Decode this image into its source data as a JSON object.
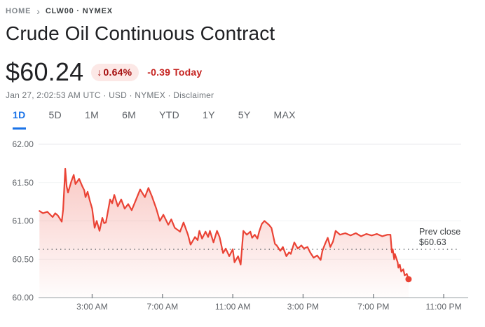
{
  "breadcrumb": {
    "home": "HOME",
    "symbol": "CLW00 · NYMEX"
  },
  "page_title": "Crude Oil Continuous Contract",
  "icons": {
    "breadcrumb_chevron": "›",
    "down_arrow": "↓"
  },
  "quote": {
    "price": "$60.24",
    "percent_change": "0.64%",
    "change_today": "-0.39 Today",
    "timestamp_line": "Jan 27, 2:02:53 AM UTC · USD · NYMEX · ",
    "disclaimer": "Disclaimer"
  },
  "range_tabs": [
    {
      "label": "1D",
      "active": true
    },
    {
      "label": "5D",
      "active": false
    },
    {
      "label": "1M",
      "active": false
    },
    {
      "label": "6M",
      "active": false
    },
    {
      "label": "YTD",
      "active": false
    },
    {
      "label": "1Y",
      "active": false
    },
    {
      "label": "5Y",
      "active": false
    },
    {
      "label": "MAX",
      "active": false
    }
  ],
  "colors": {
    "accent_blue": "#1a73e8",
    "negative_red": "#c5221f",
    "badge_bg": "#fce8e6",
    "badge_text": "#a50e0e"
  },
  "chart_data": {
    "type": "area",
    "title": "Crude Oil Continuous Contract — 1D intraday price",
    "xlabel": "",
    "ylabel": "USD",
    "ylim": [
      60.0,
      62.0
    ],
    "xlim_hours": [
      0,
      24
    ],
    "grid": true,
    "line_color": "#ea4335",
    "fill_top": "rgba(234,67,53,0.30)",
    "fill_bottom": "rgba(234,67,53,0.01)",
    "y_ticks": [
      {
        "label": "62.00",
        "value": 62.0
      },
      {
        "label": "61.50",
        "value": 61.5
      },
      {
        "label": "61.00",
        "value": 61.0
      },
      {
        "label": "60.50",
        "value": 60.5
      },
      {
        "label": "60.00",
        "value": 60.0
      }
    ],
    "x_ticks": [
      {
        "label": "3:00 AM",
        "hour": 3
      },
      {
        "label": "7:00 AM",
        "hour": 7
      },
      {
        "label": "11:00 AM",
        "hour": 11
      },
      {
        "label": "3:00 PM",
        "hour": 15
      },
      {
        "label": "7:00 PM",
        "hour": 19
      },
      {
        "label": "11:00 PM",
        "hour": 23
      }
    ],
    "prev_close": {
      "label_line1": "Prev close",
      "label_line2": "$60.63",
      "value": 60.63
    },
    "last_point": {
      "hour": 21.0,
      "value": 60.24
    },
    "series": [
      {
        "name": "CLW00",
        "points": [
          [
            0,
            61.13
          ],
          [
            0.2,
            61.1
          ],
          [
            0.45,
            61.12
          ],
          [
            0.75,
            61.05
          ],
          [
            0.9,
            61.1
          ],
          [
            1.05,
            61.07
          ],
          [
            1.27,
            60.99
          ],
          [
            1.35,
            61.15
          ],
          [
            1.47,
            61.68
          ],
          [
            1.55,
            61.45
          ],
          [
            1.63,
            61.37
          ],
          [
            1.82,
            61.52
          ],
          [
            1.95,
            61.6
          ],
          [
            2.05,
            61.48
          ],
          [
            2.14,
            61.51
          ],
          [
            2.26,
            61.55
          ],
          [
            2.42,
            61.46
          ],
          [
            2.55,
            61.4
          ],
          [
            2.62,
            61.31
          ],
          [
            2.74,
            61.38
          ],
          [
            2.86,
            61.27
          ],
          [
            3.0,
            61.16
          ],
          [
            3.14,
            60.91
          ],
          [
            3.26,
            61.0
          ],
          [
            3.42,
            60.87
          ],
          [
            3.58,
            61.04
          ],
          [
            3.68,
            60.97
          ],
          [
            3.78,
            60.98
          ],
          [
            4.02,
            61.28
          ],
          [
            4.14,
            61.23
          ],
          [
            4.26,
            61.34
          ],
          [
            4.46,
            61.19
          ],
          [
            4.65,
            61.28
          ],
          [
            4.85,
            61.16
          ],
          [
            5.05,
            61.22
          ],
          [
            5.25,
            61.14
          ],
          [
            5.45,
            61.25
          ],
          [
            5.73,
            61.41
          ],
          [
            6.0,
            61.31
          ],
          [
            6.2,
            61.43
          ],
          [
            6.4,
            61.32
          ],
          [
            6.65,
            61.16
          ],
          [
            6.85,
            61.0
          ],
          [
            7.05,
            61.08
          ],
          [
            7.33,
            60.95
          ],
          [
            7.5,
            61.02
          ],
          [
            7.7,
            60.91
          ],
          [
            8.0,
            60.86
          ],
          [
            8.2,
            60.98
          ],
          [
            8.45,
            60.82
          ],
          [
            8.6,
            60.69
          ],
          [
            8.85,
            60.79
          ],
          [
            9.0,
            60.75
          ],
          [
            9.1,
            60.87
          ],
          [
            9.25,
            60.77
          ],
          [
            9.45,
            60.86
          ],
          [
            9.6,
            60.79
          ],
          [
            9.7,
            60.87
          ],
          [
            9.9,
            60.72
          ],
          [
            10.1,
            60.87
          ],
          [
            10.25,
            60.79
          ],
          [
            10.45,
            60.58
          ],
          [
            10.6,
            60.64
          ],
          [
            10.8,
            60.54
          ],
          [
            11.0,
            60.63
          ],
          [
            11.1,
            60.46
          ],
          [
            11.3,
            60.54
          ],
          [
            11.45,
            60.43
          ],
          [
            11.6,
            60.87
          ],
          [
            11.8,
            60.82
          ],
          [
            12.0,
            60.86
          ],
          [
            12.1,
            60.78
          ],
          [
            12.25,
            60.82
          ],
          [
            12.4,
            60.77
          ],
          [
            12.5,
            60.86
          ],
          [
            12.65,
            60.96
          ],
          [
            12.8,
            61.0
          ],
          [
            12.9,
            60.98
          ],
          [
            13.05,
            60.95
          ],
          [
            13.2,
            60.91
          ],
          [
            13.4,
            60.7
          ],
          [
            13.5,
            60.68
          ],
          [
            13.7,
            60.61
          ],
          [
            13.85,
            60.66
          ],
          [
            14.05,
            60.54
          ],
          [
            14.2,
            60.59
          ],
          [
            14.3,
            60.57
          ],
          [
            14.5,
            60.72
          ],
          [
            14.7,
            60.64
          ],
          [
            14.9,
            60.68
          ],
          [
            15.05,
            60.64
          ],
          [
            15.25,
            60.66
          ],
          [
            15.4,
            60.59
          ],
          [
            15.6,
            60.52
          ],
          [
            15.8,
            60.55
          ],
          [
            16.0,
            60.49
          ],
          [
            16.1,
            60.61
          ],
          [
            16.25,
            60.7
          ],
          [
            16.4,
            60.78
          ],
          [
            16.55,
            60.66
          ],
          [
            16.7,
            60.73
          ],
          [
            16.85,
            60.87
          ],
          [
            17.1,
            60.82
          ],
          [
            17.4,
            60.84
          ],
          [
            17.7,
            60.81
          ],
          [
            18.0,
            60.84
          ],
          [
            18.3,
            60.8
          ],
          [
            18.6,
            60.83
          ],
          [
            18.9,
            60.81
          ],
          [
            19.2,
            60.83
          ],
          [
            19.5,
            60.8
          ],
          [
            19.8,
            60.82
          ],
          [
            19.97,
            60.82
          ],
          [
            20.05,
            60.59
          ],
          [
            20.1,
            60.63
          ],
          [
            20.18,
            60.5
          ],
          [
            20.22,
            60.57
          ],
          [
            20.38,
            60.46
          ],
          [
            20.42,
            60.39
          ],
          [
            20.5,
            60.43
          ],
          [
            20.58,
            60.34
          ],
          [
            20.7,
            60.37
          ],
          [
            20.78,
            60.29
          ],
          [
            20.9,
            60.31
          ],
          [
            20.97,
            60.26
          ],
          [
            21.0,
            60.24
          ]
        ]
      }
    ]
  }
}
